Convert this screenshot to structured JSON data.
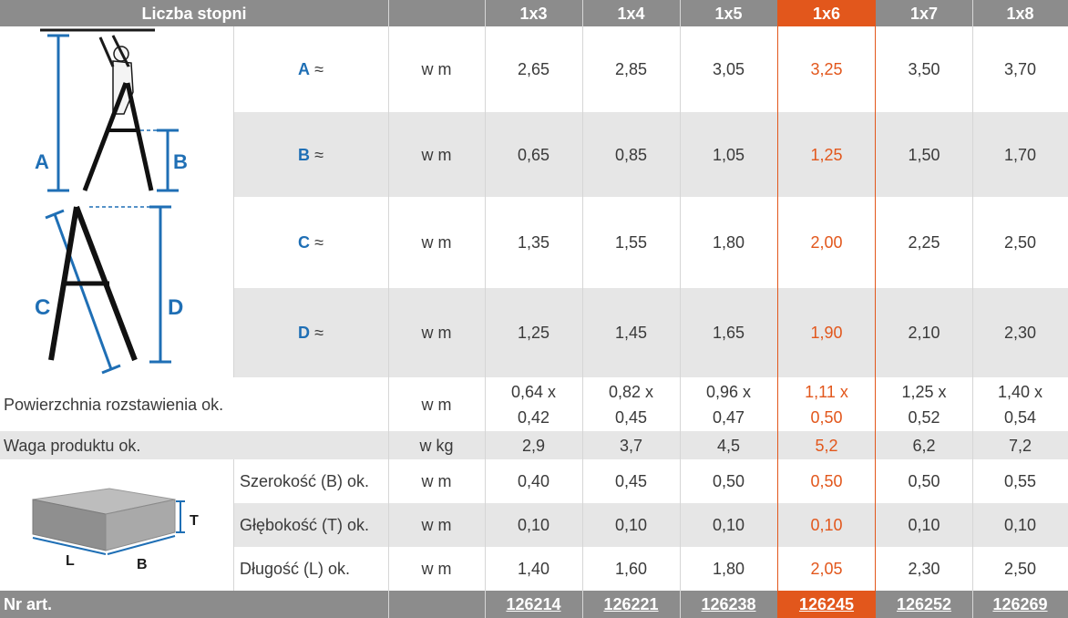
{
  "header": {
    "title": "Liczba stopni",
    "columns": [
      "1x3",
      "1x4",
      "1x5",
      "1x6",
      "1x7",
      "1x8"
    ],
    "selected_index": 3,
    "accent_color": "#e2571c"
  },
  "dimension_rows": [
    {
      "letter": "A",
      "suffix": "≈",
      "unit": "w m",
      "values": [
        "2,65",
        "2,85",
        "3,05",
        "3,25",
        "3,50",
        "3,70"
      ]
    },
    {
      "letter": "B",
      "suffix": "≈",
      "unit": "w m",
      "values": [
        "0,65",
        "0,85",
        "1,05",
        "1,25",
        "1,50",
        "1,70"
      ]
    },
    {
      "letter": "C",
      "suffix": "≈",
      "unit": "w m",
      "values": [
        "1,35",
        "1,55",
        "1,80",
        "2,00",
        "2,25",
        "2,50"
      ]
    },
    {
      "letter": "D",
      "suffix": "≈",
      "unit": "w m",
      "values": [
        "1,25",
        "1,45",
        "1,65",
        "1,90",
        "2,10",
        "2,30"
      ]
    }
  ],
  "surface_row": {
    "label": "Powierzchnia rozstawienia ok.",
    "unit": "w m",
    "values": [
      [
        "0,64 x",
        "0,42"
      ],
      [
        "0,82 x",
        "0,45"
      ],
      [
        "0,96 x",
        "0,47"
      ],
      [
        "1,11 x",
        "0,50"
      ],
      [
        "1,25 x",
        "0,52"
      ],
      [
        "1,40 x",
        "0,54"
      ]
    ]
  },
  "weight_row": {
    "label": "Waga produktu ok.",
    "unit": "w kg",
    "values": [
      "2,9",
      "3,7",
      "4,5",
      "5,2",
      "6,2",
      "7,2"
    ]
  },
  "package_rows": [
    {
      "label": "Szerokość (B) ok.",
      "unit": "w m",
      "values": [
        "0,40",
        "0,45",
        "0,50",
        "0,50",
        "0,50",
        "0,55"
      ]
    },
    {
      "label": "Głębokość (T) ok.",
      "unit": "w m",
      "values": [
        "0,10",
        "0,10",
        "0,10",
        "0,10",
        "0,10",
        "0,10"
      ]
    },
    {
      "label": "Długość (L) ok.",
      "unit": "w m",
      "values": [
        "1,40",
        "1,60",
        "1,80",
        "2,05",
        "2,30",
        "2,50"
      ]
    }
  ],
  "footer": {
    "label": "Nr art.",
    "articles": [
      "126214",
      "126221",
      "126238",
      "126245",
      "126252",
      "126269"
    ]
  },
  "diagram_labels": {
    "ladder_a": "A",
    "ladder_b": "B",
    "ladder_c": "C",
    "ladder_d": "D",
    "box_t": "T",
    "box_l": "L",
    "box_b": "B"
  }
}
